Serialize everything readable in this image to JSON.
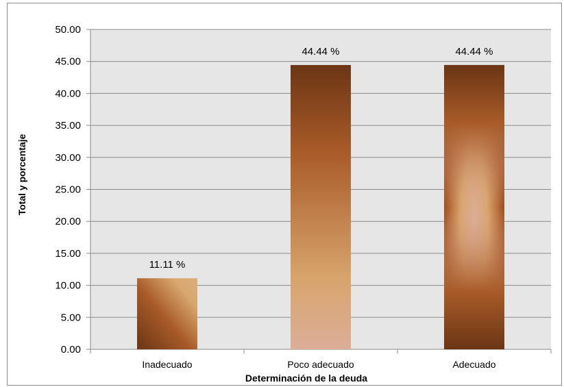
{
  "chart_data": {
    "type": "bar",
    "title": "",
    "xlabel": "Determinación de la deuda",
    "ylabel": "Total y porcentaje",
    "categories": [
      "Inadecuado",
      "Poco adecuado",
      "Adecuado"
    ],
    "values": [
      11.11,
      44.44,
      44.44
    ],
    "data_labels": [
      "11.11 %",
      "44.44 %",
      "44.44 %"
    ],
    "ylim": [
      0,
      50
    ],
    "yticks": [
      "0.00",
      "5.00",
      "10.00",
      "15.00",
      "20.00",
      "25.00",
      "30.00",
      "35.00",
      "40.00",
      "45.00",
      "50.00"
    ],
    "grid": true,
    "legend": "none",
    "colors": {
      "plot_background": "#e6e6e6",
      "gridline": "#8a8a8a",
      "bar_dark": "#6b3514",
      "bar_mid": "#a85a28",
      "bar_light": "#d9a871"
    }
  }
}
